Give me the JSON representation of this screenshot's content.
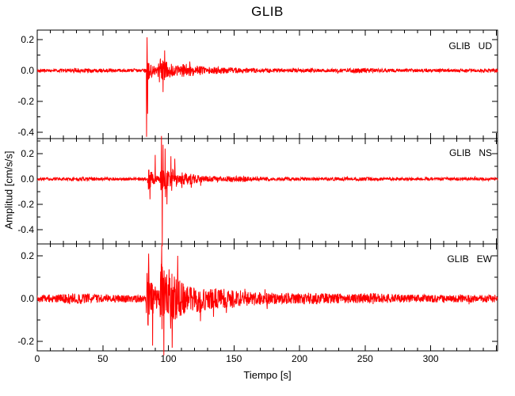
{
  "title": "GLIB",
  "colors": {
    "trace": "#ff0000",
    "frame": "#000000",
    "background": "#ffffff"
  },
  "chart_data": {
    "type": "line",
    "title": "GLIB",
    "xlabel": "Tiempo [s]",
    "ylabel": "Amplitud [cm/s/s]",
    "station": "GLIB",
    "components": [
      "UD",
      "NS",
      "EW"
    ],
    "x_range": [
      0,
      351
    ],
    "x_minor_tick_step": 10,
    "x_major_tick_step": 50,
    "x_ticks": [
      {
        "v": 0,
        "label": "0"
      },
      {
        "v": 50,
        "label": "50"
      },
      {
        "v": 100,
        "label": "100"
      },
      {
        "v": 150,
        "label": "150"
      },
      {
        "v": 200,
        "label": "200"
      },
      {
        "v": 250,
        "label": "250"
      },
      {
        "v": 300,
        "label": "300"
      }
    ],
    "grid": false,
    "legend_position": "inside-top-right",
    "event_onset_s": 83,
    "panels": [
      {
        "label": "GLIB   UD",
        "ylim": [
          -0.44,
          0.26
        ],
        "y_ticks": [
          {
            "v": 0.2,
            "label": "0.2"
          },
          {
            "v": 0.0,
            "label": "0.0"
          },
          {
            "v": -0.2,
            "label": "-0.2"
          },
          {
            "v": -0.4,
            "label": "-0.4"
          }
        ],
        "y_minor_step": 0.1,
        "peak_amplitude": -0.43,
        "noise_amp": 0.011,
        "noise_bumps": [
          {
            "t": 33,
            "w": 8,
            "gain": 0.5
          },
          {
            "t": 150,
            "w": 10,
            "gain": 0.25
          },
          {
            "t": 247,
            "w": 6,
            "gain": 0.6
          }
        ],
        "bursts": [
          {
            "t0": 83.2,
            "amp": 0.105,
            "tau": 3.5
          },
          {
            "t0": 92.0,
            "amp": 0.075,
            "tau": 13
          },
          {
            "t0": 110,
            "amp": 0.02,
            "tau": 30
          }
        ],
        "spikes": [
          {
            "t": 83.4,
            "v": -0.43
          },
          {
            "t": 83.7,
            "v": 0.215
          },
          {
            "t": 84.1,
            "v": -0.28
          },
          {
            "t": 96.0,
            "v": -0.14
          },
          {
            "t": 97.2,
            "v": 0.13
          }
        ],
        "seed": 101
      },
      {
        "label": "GLIB   NS",
        "ylim": [
          -0.52,
          0.32
        ],
        "y_ticks": [
          {
            "v": 0.2,
            "label": "0.2"
          },
          {
            "v": 0.0,
            "label": "0.0"
          },
          {
            "v": -0.2,
            "label": "-0.2"
          },
          {
            "v": -0.4,
            "label": "-0.4"
          }
        ],
        "y_minor_step": 0.1,
        "peak_amplitude": -0.53,
        "noise_amp": 0.012,
        "noise_bumps": [
          {
            "t": 35,
            "w": 8,
            "gain": 0.3
          },
          {
            "t": 152,
            "w": 8,
            "gain": 0.4
          },
          {
            "t": 250,
            "w": 6,
            "gain": 0.3
          }
        ],
        "bursts": [
          {
            "t0": 84.0,
            "amp": 0.1,
            "tau": 4
          },
          {
            "t0": 93.5,
            "amp": 0.11,
            "tau": 11
          },
          {
            "t0": 110,
            "amp": 0.02,
            "tau": 30
          }
        ],
        "spikes": [
          {
            "t": 86.0,
            "v": -0.16
          },
          {
            "t": 90.0,
            "v": 0.19
          },
          {
            "t": 94.8,
            "v": 0.34
          },
          {
            "t": 95.3,
            "v": -0.53
          },
          {
            "t": 95.9,
            "v": 0.27
          },
          {
            "t": 97.5,
            "v": 0.24
          },
          {
            "t": 99.0,
            "v": -0.2
          },
          {
            "t": 102.0,
            "v": 0.18
          },
          {
            "t": 105.0,
            "v": 0.16
          }
        ],
        "seed": 202
      },
      {
        "label": "GLIB   EW",
        "ylim": [
          -0.25,
          0.26
        ],
        "y_ticks": [
          {
            "v": 0.2,
            "label": "0.2"
          },
          {
            "v": 0.0,
            "label": "0.0"
          },
          {
            "v": -0.2,
            "label": "-0.2"
          }
        ],
        "y_minor_step": 0.1,
        "peak_amplitude": -0.26,
        "noise_amp": 0.017,
        "noise_bumps": [
          {
            "t": 32,
            "w": 9,
            "gain": 0.5
          },
          {
            "t": 150,
            "w": 10,
            "gain": 0.4
          },
          {
            "t": 210,
            "w": 12,
            "gain": 0.3
          },
          {
            "t": 255,
            "w": 8,
            "gain": 0.5
          }
        ],
        "bursts": [
          {
            "t0": 83.0,
            "amp": 0.16,
            "tau": 5
          },
          {
            "t0": 93.5,
            "amp": 0.19,
            "tau": 7
          },
          {
            "t0": 100,
            "amp": 0.07,
            "tau": 22
          },
          {
            "t0": 120,
            "amp": 0.02,
            "tau": 60
          }
        ],
        "spikes": [
          {
            "t": 85.0,
            "v": 0.21
          },
          {
            "t": 88.0,
            "v": -0.22
          },
          {
            "t": 95.0,
            "v": 0.25
          },
          {
            "t": 96.5,
            "v": -0.265
          },
          {
            "t": 103.0,
            "v": -0.23
          },
          {
            "t": 107.0,
            "v": 0.2
          }
        ],
        "seed": 303
      }
    ]
  }
}
